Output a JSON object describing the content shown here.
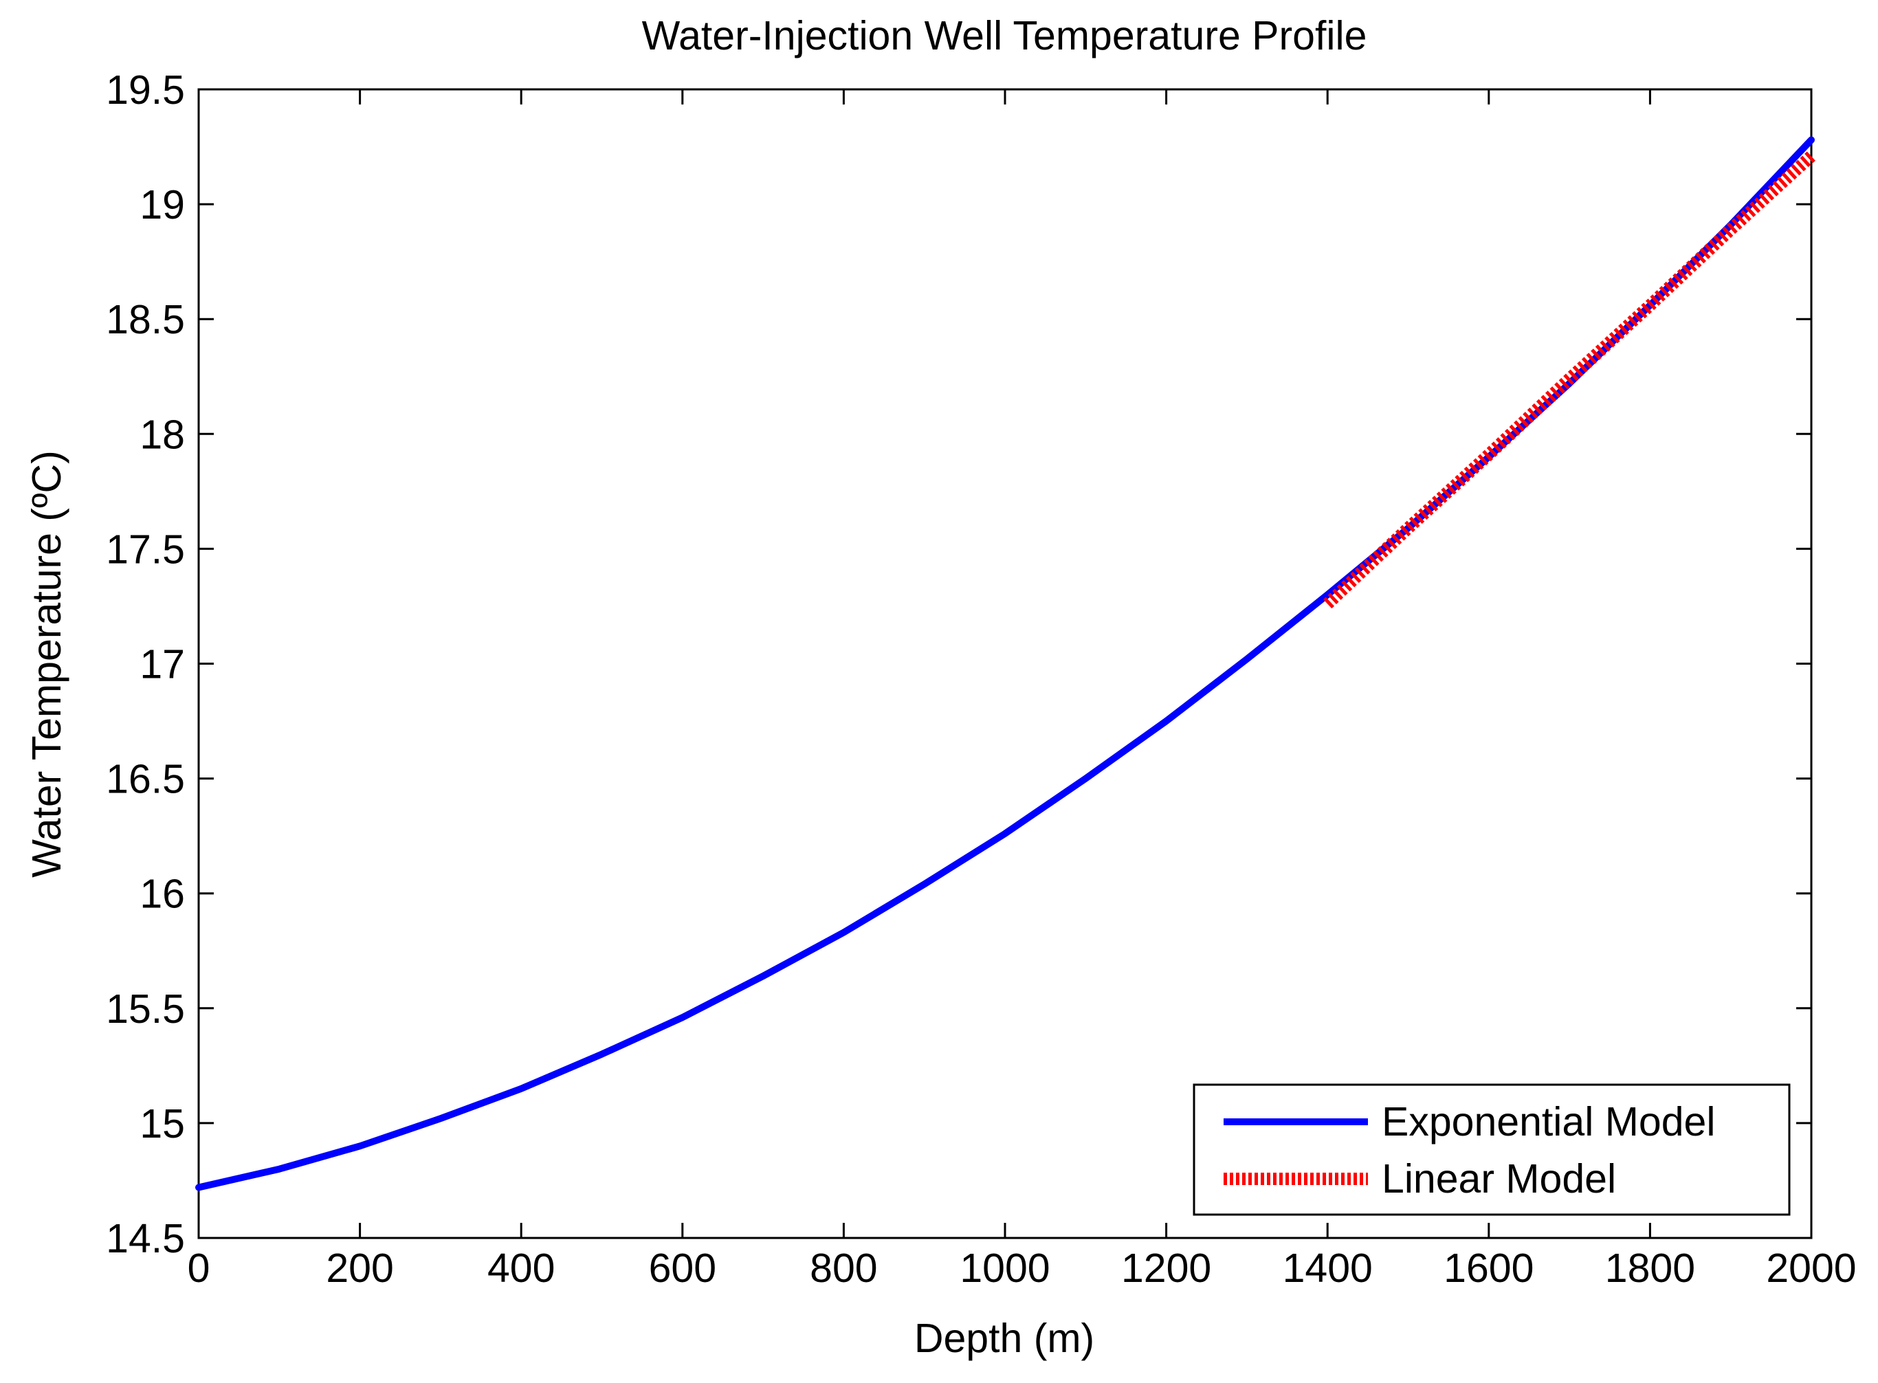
{
  "chart_data": {
    "type": "line",
    "title": "Water-Injection Well Temperature Profile",
    "xlabel": "Depth (m)",
    "ylabel": "Water Temperature (ºC)",
    "xlim": [
      0,
      2000
    ],
    "ylim": [
      14.5,
      19.5
    ],
    "xticks": [
      0,
      200,
      400,
      600,
      800,
      1000,
      1200,
      1400,
      1600,
      1800,
      2000
    ],
    "yticks": [
      14.5,
      15,
      15.5,
      16,
      16.5,
      17,
      17.5,
      18,
      18.5,
      19,
      19.5
    ],
    "ytick_labels": [
      "14.5",
      "15",
      "15.5",
      "16",
      "16.5",
      "17",
      "17.5",
      "18",
      "18.5",
      "19",
      "19.5"
    ],
    "grid": false,
    "legend_position": "bottom-right",
    "series": [
      {
        "name": "Exponential Model",
        "color": "#0000ff",
        "style": "solid",
        "x": [
          0,
          100,
          200,
          300,
          400,
          500,
          600,
          700,
          800,
          900,
          1000,
          1100,
          1200,
          1300,
          1400,
          1500,
          1600,
          1700,
          1800,
          1900,
          2000
        ],
        "y": [
          14.72,
          14.8,
          14.9,
          15.02,
          15.15,
          15.3,
          15.46,
          15.64,
          15.83,
          16.04,
          16.26,
          16.5,
          16.75,
          17.02,
          17.3,
          17.59,
          17.9,
          18.22,
          18.56,
          18.91,
          19.28
        ]
      },
      {
        "name": "Linear Model",
        "color": "#ff0000",
        "style": "dotted",
        "x": [
          1400,
          1500,
          1600,
          1700,
          1800,
          1900,
          2000
        ],
        "y": [
          17.26,
          17.59,
          17.91,
          18.24,
          18.56,
          18.89,
          19.21
        ]
      }
    ]
  }
}
